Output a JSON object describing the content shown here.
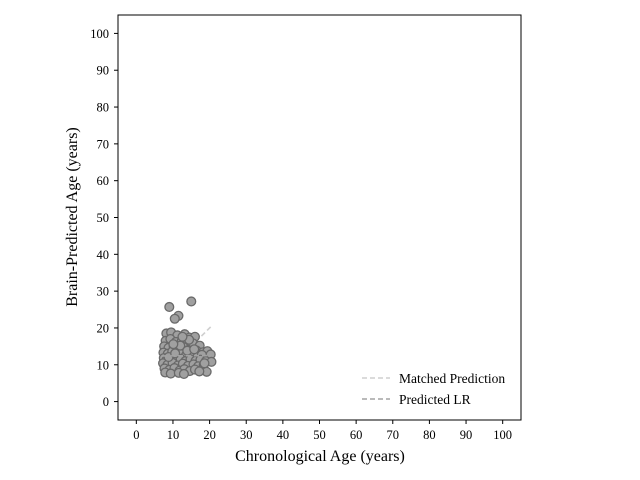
{
  "chart_data": {
    "type": "scatter",
    "title": "",
    "xlabel": "Chronological Age (years)",
    "ylabel": "Brain-Predicted Age (years)",
    "xlim": [
      -5,
      105
    ],
    "ylim": [
      -5,
      105
    ],
    "xticks": [
      0,
      10,
      20,
      30,
      40,
      50,
      60,
      70,
      80,
      90,
      100
    ],
    "yticks": [
      0,
      10,
      20,
      30,
      40,
      50,
      60,
      70,
      80,
      90,
      100
    ],
    "grid": false,
    "legend_position": "lower-right",
    "colors": {
      "points_fill": "#a0a0a0",
      "points_edge": "#696969",
      "matched_line": "#cfcfcf",
      "lr_line": "#a3a3a3"
    },
    "series": [
      {
        "type": "scatter",
        "points": [
          [
            9,
            25.7
          ],
          [
            15,
            27.2
          ],
          [
            11.5,
            23.3
          ],
          [
            10.5,
            22.5
          ],
          [
            8.2,
            18.5
          ],
          [
            9.5,
            18.8
          ],
          [
            11.2,
            18.0
          ],
          [
            13.2,
            18.3
          ],
          [
            14.5,
            17.4
          ],
          [
            16,
            17.6
          ],
          [
            8.0,
            16.5
          ],
          [
            9.3,
            17.0
          ],
          [
            10.8,
            16.2
          ],
          [
            12.4,
            16.4
          ],
          [
            13.8,
            15.6
          ],
          [
            15.5,
            15.8
          ],
          [
            17.3,
            15.2
          ],
          [
            7.6,
            15.0
          ],
          [
            8.8,
            14.6
          ],
          [
            10.2,
            14.9
          ],
          [
            11.7,
            14.4
          ],
          [
            12.9,
            14.8
          ],
          [
            14.2,
            14.0
          ],
          [
            16.4,
            13.9
          ],
          [
            18.2,
            13.4
          ],
          [
            19.4,
            13.7
          ],
          [
            7.4,
            13.3
          ],
          [
            8.6,
            13.0
          ],
          [
            9.8,
            13.6
          ],
          [
            11.0,
            12.9
          ],
          [
            12.3,
            13.2
          ],
          [
            13.6,
            12.6
          ],
          [
            15.1,
            12.8
          ],
          [
            16.8,
            12.3
          ],
          [
            17.9,
            12.7
          ],
          [
            20.3,
            12.8
          ],
          [
            7.5,
            11.8
          ],
          [
            8.3,
            11.4
          ],
          [
            9.6,
            11.9
          ],
          [
            10.9,
            11.2
          ],
          [
            12.1,
            11.6
          ],
          [
            13.4,
            11.0
          ],
          [
            14.8,
            11.5
          ],
          [
            16.2,
            11.1
          ],
          [
            17.5,
            11.4
          ],
          [
            19.0,
            11.0
          ],
          [
            20.5,
            10.8
          ],
          [
            7.3,
            10.4
          ],
          [
            8.5,
            10.0
          ],
          [
            9.9,
            10.5
          ],
          [
            11.3,
            9.8
          ],
          [
            12.7,
            10.3
          ],
          [
            14.1,
            9.7
          ],
          [
            15.6,
            10.1
          ],
          [
            16.9,
            9.6
          ],
          [
            18.4,
            9.9
          ],
          [
            7.7,
            9.0
          ],
          [
            9.0,
            8.6
          ],
          [
            10.4,
            9.1
          ],
          [
            11.8,
            8.4
          ],
          [
            13.1,
            8.8
          ],
          [
            14.6,
            8.3
          ],
          [
            16.0,
            8.7
          ],
          [
            17.7,
            8.5
          ],
          [
            19.2,
            8.1
          ],
          [
            7.9,
            7.9
          ],
          [
            9.4,
            7.6
          ],
          [
            11.6,
            7.8
          ],
          [
            13.0,
            7.5
          ],
          [
            17.2,
            8.2
          ],
          [
            8.8,
            12.1
          ],
          [
            10.6,
            13.1
          ],
          [
            12.0,
            15.2
          ],
          [
            13.9,
            13.8
          ],
          [
            15.8,
            14.2
          ],
          [
            18.6,
            10.4
          ],
          [
            14.4,
            16.8
          ],
          [
            10.1,
            15.6
          ],
          [
            12.6,
            17.6
          ]
        ]
      },
      {
        "name": "Matched Prediction",
        "type": "line",
        "style": "dashed",
        "x": [
          7,
          20.5
        ],
        "y": [
          7,
          20.5
        ]
      },
      {
        "name": "Predicted LR",
        "type": "line",
        "style": "dashed",
        "x": [
          7,
          20.5
        ],
        "y": [
          12.4,
          12.5
        ]
      }
    ]
  }
}
